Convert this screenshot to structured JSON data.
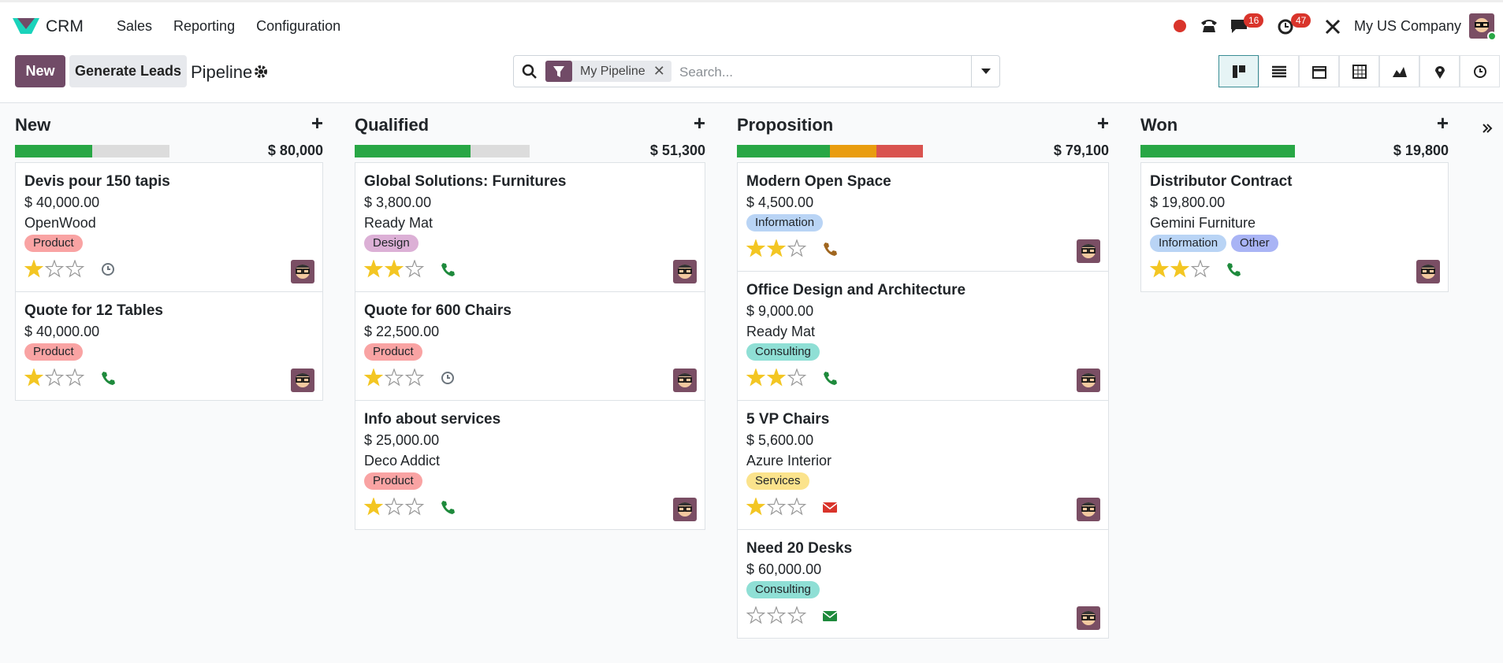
{
  "navbar": {
    "app": "CRM",
    "menu": [
      "Sales",
      "Reporting",
      "Configuration"
    ],
    "badges": [
      "16",
      "47"
    ],
    "company": "My US Company"
  },
  "control": {
    "new": "New",
    "generate": "Generate Leads",
    "breadcrumb": "Pipeline",
    "facet": "My Pipeline",
    "placeholder": "Search..."
  },
  "columns": [
    {
      "title": "New",
      "total": "$ 80,000",
      "progress": [
        {
          "color": "#28a745",
          "value": 50
        },
        {
          "color": "#dcdcdc",
          "value": 50
        }
      ],
      "cards": [
        {
          "title": "Devis pour 150 tapis",
          "amount": "$ 40,000.00",
          "company": "OpenWood",
          "tags": [
            {
              "label": "Product",
              "color": "#f9a3a3"
            }
          ],
          "priority": 1,
          "activity": "clock",
          "activity_color": "#6c757d"
        },
        {
          "title": "Quote for 12 Tables",
          "amount": "$ 40,000.00",
          "tags": [
            {
              "label": "Product",
              "color": "#f9a3a3"
            }
          ],
          "priority": 1,
          "activity": "phone",
          "activity_color": "#1e8a3c"
        }
      ]
    },
    {
      "title": "Qualified",
      "total": "$ 51,300",
      "progress": [
        {
          "color": "#28a745",
          "value": 66
        },
        {
          "color": "#dcdcdc",
          "value": 34
        }
      ],
      "cards": [
        {
          "title": "Global Solutions: Furnitures",
          "amount": "$ 3,800.00",
          "company": "Ready Mat",
          "tags": [
            {
              "label": "Design",
              "color": "#dcb0d6"
            }
          ],
          "priority": 2,
          "activity": "phone",
          "activity_color": "#1e8a3c"
        },
        {
          "title": "Quote for 600 Chairs",
          "amount": "$ 22,500.00",
          "tags": [
            {
              "label": "Product",
              "color": "#f9a3a3"
            }
          ],
          "priority": 1,
          "activity": "clock",
          "activity_color": "#6c757d"
        },
        {
          "title": "Info about services",
          "amount": "$ 25,000.00",
          "company": "Deco Addict",
          "tags": [
            {
              "label": "Product",
              "color": "#f9a3a3"
            }
          ],
          "priority": 1,
          "activity": "phone",
          "activity_color": "#1e8a3c"
        }
      ]
    },
    {
      "title": "Proposition",
      "total": "$ 79,100",
      "progress": [
        {
          "color": "#28a745",
          "value": 50
        },
        {
          "color": "#e99d0f",
          "value": 25
        },
        {
          "color": "#d9534f",
          "value": 25
        }
      ],
      "cards": [
        {
          "title": "Modern Open Space",
          "amount": "$ 4,500.00",
          "tags": [
            {
              "label": "Information",
              "color": "#b9d4f5"
            }
          ],
          "priority": 2,
          "activity": "phone",
          "activity_color": "#a0661f"
        },
        {
          "title": "Office Design and Architecture",
          "amount": "$ 9,000.00",
          "company": "Ready Mat",
          "tags": [
            {
              "label": "Consulting",
              "color": "#8fdfd5"
            }
          ],
          "priority": 2,
          "activity": "phone",
          "activity_color": "#1e8a3c"
        },
        {
          "title": "5 VP Chairs",
          "amount": "$ 5,600.00",
          "company": "Azure Interior",
          "tags": [
            {
              "label": "Services",
              "color": "#fbe38c"
            }
          ],
          "priority": 1,
          "activity": "email",
          "activity_color": "#d9342b"
        },
        {
          "title": "Need 20 Desks",
          "amount": "$ 60,000.00",
          "tags": [
            {
              "label": "Consulting",
              "color": "#8fdfd5"
            }
          ],
          "priority": 0,
          "activity": "email",
          "activity_color": "#1e8a3c"
        }
      ]
    },
    {
      "title": "Won",
      "total": "$ 19,800",
      "progress": [
        {
          "color": "#28a745",
          "value": 100
        }
      ],
      "cards": [
        {
          "title": "Distributor Contract",
          "amount": "$ 19,800.00",
          "company": "Gemini Furniture",
          "tags": [
            {
              "label": "Information",
              "color": "#b9d4f5"
            },
            {
              "label": "Other",
              "color": "#a9b4f5"
            }
          ],
          "priority": 2,
          "activity": "phone",
          "activity_color": "#1e8a3c"
        }
      ]
    }
  ]
}
